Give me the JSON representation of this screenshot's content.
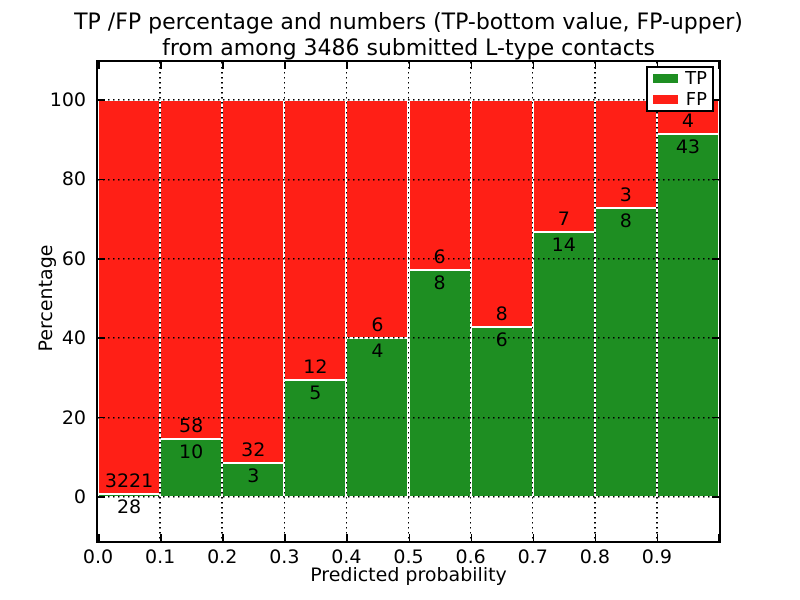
{
  "title": {
    "line1": "TP /FP percentage and numbers (TP-bottom value, FP-upper)",
    "line2": "from among 3486 submitted L-type contacts"
  },
  "axes": {
    "ylabel": "Percentage",
    "xlabel": "Predicted probability"
  },
  "legend": {
    "items": [
      {
        "label": "TP",
        "color": "#1e8e22"
      },
      {
        "label": "FP",
        "color": "#ff1f16"
      }
    ]
  },
  "chart_data": {
    "type": "bar",
    "subtype": "stacked-percentage-histogram",
    "title": "TP /FP percentage and numbers (TP-bottom value, FP-upper) from among 3486 submitted L-type contacts",
    "xlabel": "Predicted probability",
    "ylabel": "Percentage",
    "xlim": [
      0.0,
      1.0
    ],
    "ylim": [
      -11,
      110
    ],
    "grid": true,
    "grid_style": "dotted",
    "legend_position": "upper right",
    "bin_width": 0.1,
    "categories": [
      "0.0-0.1",
      "0.1-0.2",
      "0.2-0.3",
      "0.3-0.4",
      "0.4-0.5",
      "0.5-0.6",
      "0.6-0.7",
      "0.7-0.8",
      "0.8-0.9",
      "0.9-1.0"
    ],
    "series": [
      {
        "name": "TP",
        "color": "#1e8e22",
        "counts": [
          28,
          10,
          3,
          5,
          4,
          8,
          6,
          14,
          8,
          43
        ]
      },
      {
        "name": "FP",
        "color": "#ff1f16",
        "counts": [
          3221,
          58,
          32,
          12,
          6,
          6,
          8,
          7,
          3,
          4
        ]
      }
    ],
    "tp_percent_of_bin": [
      0.86,
      14.71,
      8.57,
      29.41,
      40.0,
      57.14,
      42.86,
      66.67,
      72.73,
      91.49
    ],
    "total_contacts": 3486,
    "yticks": [
      0,
      20,
      40,
      60,
      80,
      100
    ],
    "xtick_labels": [
      "0.0",
      "0.1",
      "0.2",
      "0.3",
      "0.4",
      "0.5",
      "0.6",
      "0.7",
      "0.8",
      "0.9"
    ]
  }
}
